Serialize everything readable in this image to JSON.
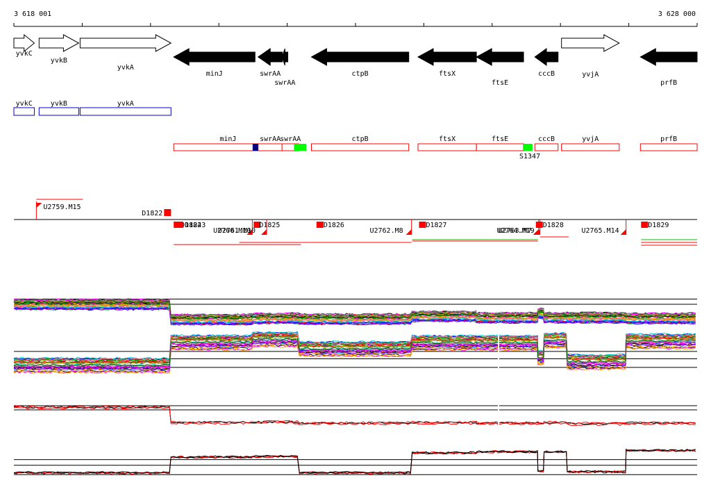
{
  "ruler": {
    "start_label": "3 618 001",
    "end_label": "3 628 000",
    "start_bp": 3618001,
    "end_bp": 3628000
  },
  "genes": [
    {
      "name": "yvkC",
      "strand": "+",
      "start": 3618001,
      "end": 3618300
    },
    {
      "name": "yvkB",
      "strand": "+",
      "start": 3618370,
      "end": 3618950
    },
    {
      "name": "yvkA",
      "strand": "+",
      "start": 3618970,
      "end": 3620300
    },
    {
      "name": "minJ",
      "strand": "-",
      "start": 3620340,
      "end": 3621530
    },
    {
      "name": "swrAA",
      "strand": "-",
      "start": 3621575,
      "end": 3621930
    },
    {
      "name": "swrAA",
      "strand": "-",
      "start": 3621925,
      "end": 3622010
    },
    {
      "name": "ctpB",
      "strand": "-",
      "start": 3622355,
      "end": 3623780
    },
    {
      "name": "ftsX",
      "strand": "-",
      "start": 3623915,
      "end": 3624770
    },
    {
      "name": "ftsE",
      "strand": "-",
      "start": 3624770,
      "end": 3625460
    },
    {
      "name": "cccB",
      "strand": "-",
      "start": 3625625,
      "end": 3625965
    },
    {
      "name": "yvjA",
      "strand": "+",
      "start": 3626015,
      "end": 3626860
    },
    {
      "name": "prfB",
      "strand": "-",
      "start": 3627170,
      "end": 3628000
    }
  ],
  "blue_track": [
    {
      "name": "yvkC",
      "start": 3618001,
      "end": 3618300
    },
    {
      "name": "yvkB",
      "start": 3618370,
      "end": 3618950
    },
    {
      "name": "yvkA",
      "start": 3618970,
      "end": 3620300
    }
  ],
  "red_track": [
    {
      "name": "minJ",
      "start": 3620340,
      "end": 3621930
    },
    {
      "name": "swrAA",
      "start": 3621575,
      "end": 3621930
    },
    {
      "name": "swrAA",
      "start": 3621925,
      "end": 3622170
    },
    {
      "name": "ctpB",
      "start": 3622355,
      "end": 3623780
    },
    {
      "name": "ftsX",
      "start": 3623915,
      "end": 3624770
    },
    {
      "name": "ftsE",
      "start": 3624770,
      "end": 3625460
    },
    {
      "name": "cccB",
      "start": 3625625,
      "end": 3625965
    },
    {
      "name": "yvjA",
      "start": 3626015,
      "end": 3626860
    },
    {
      "name": "prfB",
      "start": 3627170,
      "end": 3628000
    }
  ],
  "red_track_marks": [
    {
      "color": "#000080",
      "start": 3621495,
      "end": 3621575
    },
    {
      "color": "#00ff00",
      "start": 3622100,
      "end": 3622280
    },
    {
      "color": "#00ff00",
      "start": 3625460,
      "end": 3625590
    }
  ],
  "red_track_extra_label": "S1347",
  "features_upper": [
    {
      "name": "U2759.M15",
      "pos": 3618330
    },
    {
      "name": "D1822",
      "pos": 3620260
    }
  ],
  "features_lower": [
    {
      "name": "D1824",
      "pos": 3620340
    },
    {
      "name": "D1823",
      "pos": 3620380
    },
    {
      "name": "D1825",
      "pos": 3621510
    },
    {
      "name": "U2760.M10",
      "pos": 3621490
    },
    {
      "name": "U2761.M10",
      "pos": 3621700
    },
    {
      "name": "D1826",
      "pos": 3622430
    },
    {
      "name": "U2762.M8",
      "pos": 3623820
    },
    {
      "name": "D1827",
      "pos": 3623930
    },
    {
      "name": "U2763.M7",
      "pos": 3625680
    },
    {
      "name": "U2764.M19",
      "pos": 3625700
    },
    {
      "name": "D1828",
      "pos": 3625640
    },
    {
      "name": "U2765.M14",
      "pos": 3626960
    },
    {
      "name": "D1829",
      "pos": 3627180
    }
  ],
  "colors": {
    "forward_gene": "#ffffff",
    "reverse_gene": "#000000",
    "blue_box": "#0000cc",
    "red_box": "#ff0000",
    "feature_red": "#ff0000",
    "green_mark": "#00ff00",
    "navy_mark": "#000080"
  },
  "expression_levels": {
    "segments_bp": [
      3618001,
      3620300,
      3621500,
      3622180,
      3623830,
      3624770,
      3625670,
      3625760,
      3626100,
      3626960,
      3628000
    ],
    "panel1_level": [
      0.78,
      0.35,
      0.38,
      0.36,
      0.44,
      0.4,
      0.52,
      0.4,
      0.4,
      0.38
    ],
    "panel2_level": [
      0.22,
      0.75,
      0.82,
      0.6,
      0.74,
      0.74,
      0.4,
      0.8,
      0.3,
      0.78
    ],
    "panel3_level": [
      0.85,
      0.3,
      0.32,
      0.28,
      0.3,
      0.28,
      0.28,
      0.3,
      0.26,
      0.28
    ],
    "panel4_level": [
      0.15,
      0.62,
      0.64,
      0.15,
      0.75,
      0.78,
      0.2,
      0.78,
      0.18,
      0.82
    ]
  }
}
